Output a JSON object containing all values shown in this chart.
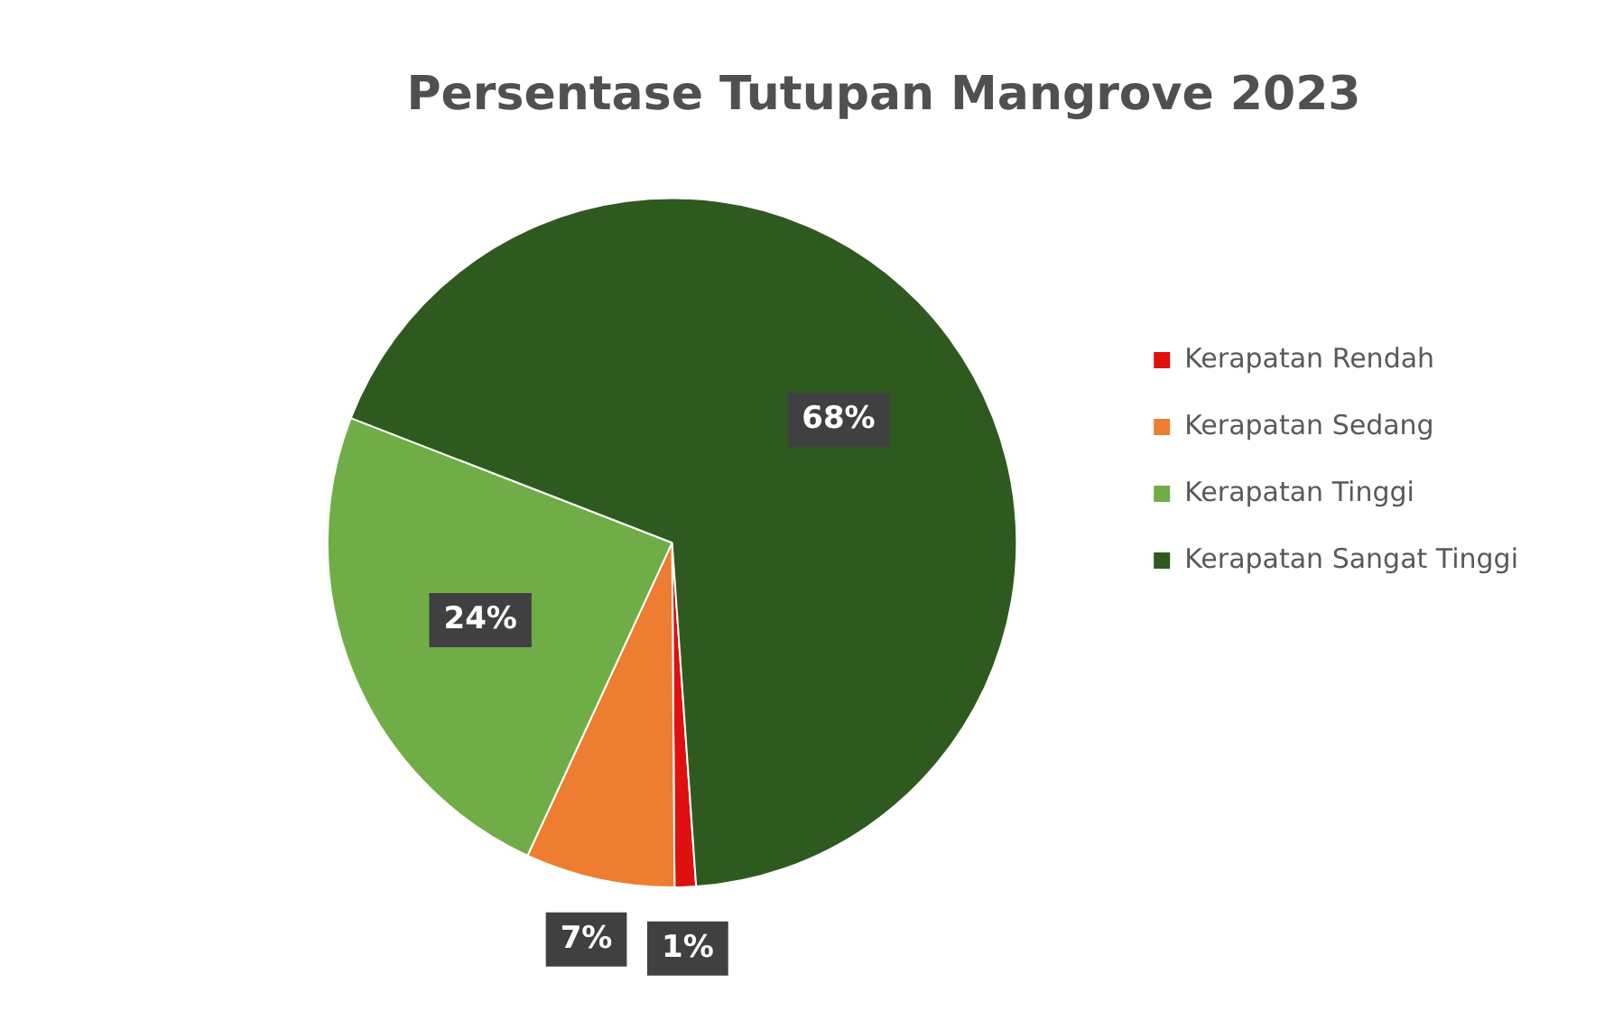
{
  "chart_data": {
    "type": "pie",
    "title": "Persentase Tutupan Mangrove 2023",
    "categories": [
      "Kerapatan Rendah",
      "Kerapatan Sedang",
      "Kerapatan Tinggi",
      "Kerapatan Sangat Tinggi"
    ],
    "values": [
      1,
      7,
      24,
      68
    ],
    "value_labels": [
      "1%",
      "7%",
      "24%",
      "68%"
    ],
    "colors": [
      "#e01010",
      "#ed7d31",
      "#70ad47",
      "#2f5a1f"
    ],
    "legend": "right"
  }
}
